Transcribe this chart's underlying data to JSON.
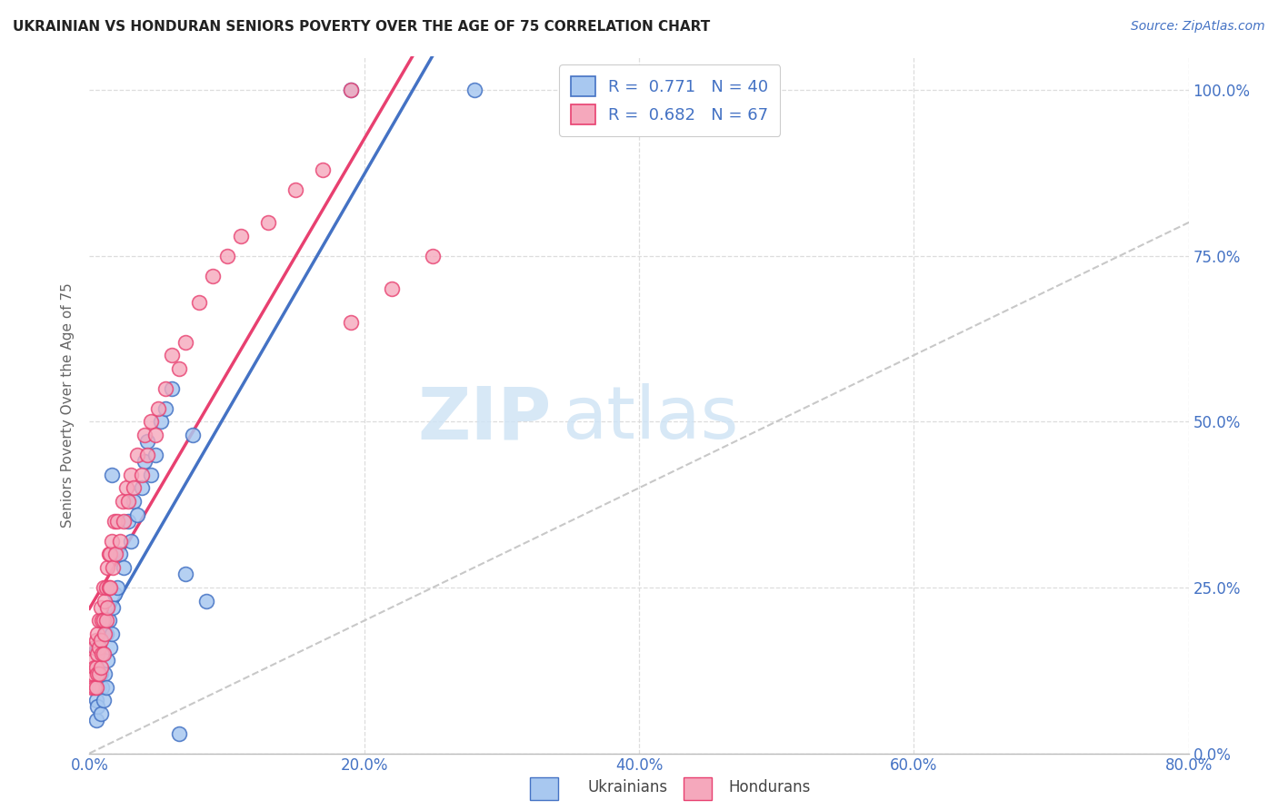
{
  "title": "UKRAINIAN VS HONDURAN SENIORS POVERTY OVER THE AGE OF 75 CORRELATION CHART",
  "source": "Source: ZipAtlas.com",
  "ylabel": "Seniors Poverty Over the Age of 75",
  "xlabel_ticks": [
    "0.0%",
    "20.0%",
    "40.0%",
    "60.0%",
    "80.0%"
  ],
  "ylabel_ticks": [
    "100.0%",
    "75.0%",
    "50.0%",
    "25.0%",
    "0.0%"
  ],
  "xlim": [
    0.0,
    0.8
  ],
  "ylim": [
    0.0,
    1.05
  ],
  "ukrainian_R": 0.771,
  "ukrainian_N": 40,
  "honduran_R": 0.682,
  "honduran_N": 67,
  "ukrainian_color": "#a8c8f0",
  "honduran_color": "#f5a8bc",
  "trendline_ukrainian_color": "#4472c4",
  "trendline_honduran_color": "#e84070",
  "trendline_diagonal_color": "#c8c8c8",
  "legend_label_ukrainian": "Ukrainians",
  "legend_label_honduran": "Hondurans",
  "watermark_zip": "ZIP",
  "watermark_atlas": "atlas",
  "ukrainian_x": [
    0.005,
    0.005,
    0.006,
    0.007,
    0.008,
    0.008,
    0.009,
    0.01,
    0.01,
    0.011,
    0.012,
    0.012,
    0.013,
    0.014,
    0.015,
    0.016,
    0.016,
    0.017,
    0.018,
    0.02,
    0.022,
    0.025,
    0.028,
    0.03,
    0.032,
    0.035,
    0.038,
    0.04,
    0.042,
    0.045,
    0.048,
    0.052,
    0.055,
    0.06,
    0.065,
    0.07,
    0.075,
    0.085,
    0.19,
    0.28
  ],
  "ukrainian_y": [
    0.05,
    0.08,
    0.07,
    0.1,
    0.06,
    0.12,
    0.1,
    0.08,
    0.15,
    0.12,
    0.1,
    0.18,
    0.14,
    0.2,
    0.16,
    0.18,
    0.42,
    0.22,
    0.24,
    0.25,
    0.3,
    0.28,
    0.35,
    0.32,
    0.38,
    0.36,
    0.4,
    0.44,
    0.47,
    0.42,
    0.45,
    0.5,
    0.52,
    0.55,
    0.03,
    0.27,
    0.48,
    0.23,
    1.0,
    1.0
  ],
  "honduran_x": [
    0.002,
    0.003,
    0.003,
    0.004,
    0.004,
    0.004,
    0.005,
    0.005,
    0.005,
    0.006,
    0.006,
    0.006,
    0.007,
    0.007,
    0.007,
    0.008,
    0.008,
    0.008,
    0.009,
    0.009,
    0.01,
    0.01,
    0.01,
    0.011,
    0.011,
    0.012,
    0.012,
    0.013,
    0.013,
    0.014,
    0.014,
    0.015,
    0.015,
    0.016,
    0.017,
    0.018,
    0.019,
    0.02,
    0.022,
    0.024,
    0.025,
    0.027,
    0.028,
    0.03,
    0.032,
    0.035,
    0.038,
    0.04,
    0.042,
    0.045,
    0.048,
    0.05,
    0.055,
    0.06,
    0.065,
    0.07,
    0.08,
    0.09,
    0.1,
    0.11,
    0.13,
    0.15,
    0.17,
    0.19,
    0.22,
    0.25,
    0.19
  ],
  "honduran_y": [
    0.1,
    0.12,
    0.14,
    0.1,
    0.13,
    0.16,
    0.1,
    0.13,
    0.17,
    0.12,
    0.15,
    0.18,
    0.12,
    0.16,
    0.2,
    0.13,
    0.17,
    0.22,
    0.15,
    0.2,
    0.15,
    0.2,
    0.25,
    0.18,
    0.23,
    0.2,
    0.25,
    0.22,
    0.28,
    0.25,
    0.3,
    0.25,
    0.3,
    0.32,
    0.28,
    0.35,
    0.3,
    0.35,
    0.32,
    0.38,
    0.35,
    0.4,
    0.38,
    0.42,
    0.4,
    0.45,
    0.42,
    0.48,
    0.45,
    0.5,
    0.48,
    0.52,
    0.55,
    0.6,
    0.58,
    0.62,
    0.68,
    0.72,
    0.75,
    0.78,
    0.8,
    0.85,
    0.88,
    0.65,
    0.7,
    0.75,
    1.0
  ]
}
